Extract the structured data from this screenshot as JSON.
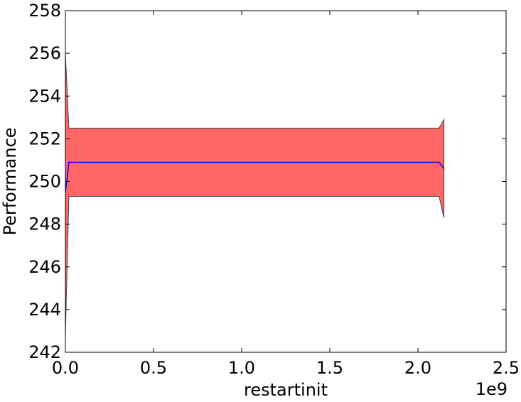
{
  "chart_data": {
    "type": "area",
    "title": "",
    "xlabel": "restartinit",
    "ylabel": "Performance",
    "x_offset_text": "1e9",
    "x_scale": 1000000000,
    "xlim": [
      0,
      2500000000
    ],
    "ylim": [
      242,
      258
    ],
    "x_ticks": [
      0,
      500000000,
      1000000000,
      1500000000,
      2000000000,
      2500000000
    ],
    "x_tick_labels": [
      "0.0",
      "0.5",
      "1.0",
      "1.5",
      "2.0",
      "2.5"
    ],
    "y_ticks": [
      242,
      244,
      246,
      248,
      250,
      252,
      254,
      256,
      258
    ],
    "y_tick_labels": [
      "242",
      "244",
      "246",
      "248",
      "250",
      "252",
      "254",
      "256",
      "258"
    ],
    "grid": false,
    "series": [
      {
        "x": [
          0,
          20000000,
          2120000000,
          2147483647
        ],
        "values": [
          249.5,
          250.9,
          250.9,
          250.6
        ],
        "upper": [
          256.0,
          252.5,
          252.5,
          252.9
        ],
        "lower": [
          242.8,
          249.3,
          249.3,
          248.3
        ]
      }
    ],
    "colors": {
      "band_fill": "#ff6666",
      "band_edge": "#444444",
      "line": "#0000ff"
    }
  }
}
